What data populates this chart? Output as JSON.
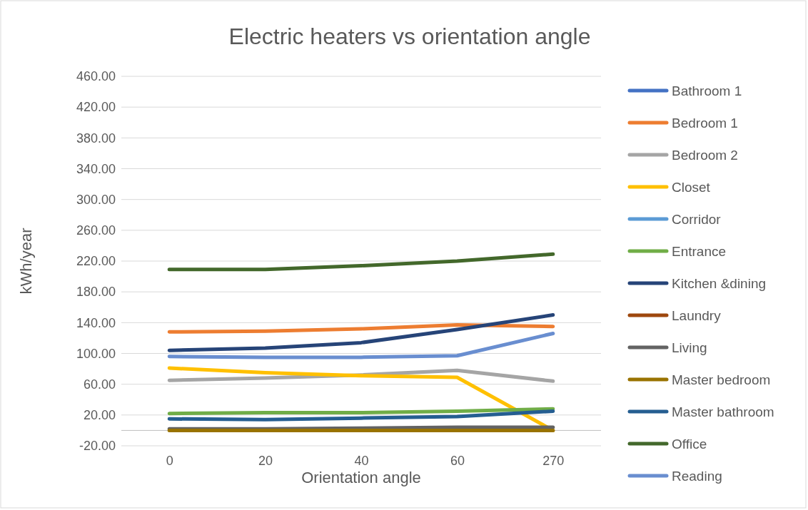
{
  "chart_data": {
    "type": "line",
    "title": "Electric heaters vs orientation angle",
    "xlabel": "Orientation angle",
    "ylabel": "kWh/year",
    "categories": [
      "0",
      "20",
      "40",
      "60",
      "270"
    ],
    "ylim": [
      -20,
      460
    ],
    "yticks": [
      {
        "value": -20,
        "label": "-20.00"
      },
      {
        "value": 20,
        "label": "20.00"
      },
      {
        "value": 60,
        "label": "60.00"
      },
      {
        "value": 100,
        "label": "100.00"
      },
      {
        "value": 140,
        "label": "140.00"
      },
      {
        "value": 180,
        "label": "180.00"
      },
      {
        "value": 220,
        "label": "220.00"
      },
      {
        "value": 260,
        "label": "260.00"
      },
      {
        "value": 300,
        "label": "300.00"
      },
      {
        "value": 340,
        "label": "340.00"
      },
      {
        "value": 380,
        "label": "380.00"
      },
      {
        "value": 420,
        "label": "420.00"
      },
      {
        "value": 460,
        "label": "460.00"
      }
    ],
    "grid": "y",
    "legend": "right",
    "marker": "none",
    "line_style": "solid",
    "series": [
      {
        "name": "Bathroom 1",
        "color": "#4472c4",
        "values": [
          null,
          null,
          null,
          null,
          null
        ]
      },
      {
        "name": "Bedroom 1",
        "color": "#ed7d31",
        "values": [
          128,
          129,
          132,
          137,
          135
        ]
      },
      {
        "name": "Bedroom 2",
        "color": "#a5a5a5",
        "values": [
          65,
          68,
          72,
          78,
          64
        ]
      },
      {
        "name": "Closet",
        "color": "#ffc000",
        "values": [
          81,
          75,
          71,
          69,
          0
        ]
      },
      {
        "name": "Corridor",
        "color": "#5b9bd5",
        "values": [
          null,
          null,
          null,
          null,
          null
        ]
      },
      {
        "name": "Entrance",
        "color": "#70ad47",
        "values": [
          22,
          23,
          23,
          25,
          28
        ]
      },
      {
        "name": "Kitchen &dining",
        "color": "#264478",
        "values": [
          104,
          107,
          114,
          131,
          150
        ]
      },
      {
        "name": "Laundry",
        "color": "#9e480e",
        "values": [
          null,
          null,
          null,
          null,
          null
        ]
      },
      {
        "name": "Living",
        "color": "#636363",
        "values": [
          2,
          2,
          3,
          4,
          4
        ]
      },
      {
        "name": "Master bedroom",
        "color": "#997300",
        "values": [
          0,
          0,
          0,
          0,
          0
        ]
      },
      {
        "name": "Master bathroom",
        "color": "#255e91",
        "values": [
          15,
          14,
          16,
          18,
          25
        ]
      },
      {
        "name": "Office",
        "color": "#43682b",
        "values": [
          209,
          209,
          214,
          220,
          229
        ]
      },
      {
        "name": "Reading",
        "color": "#698ed0",
        "values": [
          96,
          95,
          95,
          97,
          126
        ]
      }
    ]
  }
}
